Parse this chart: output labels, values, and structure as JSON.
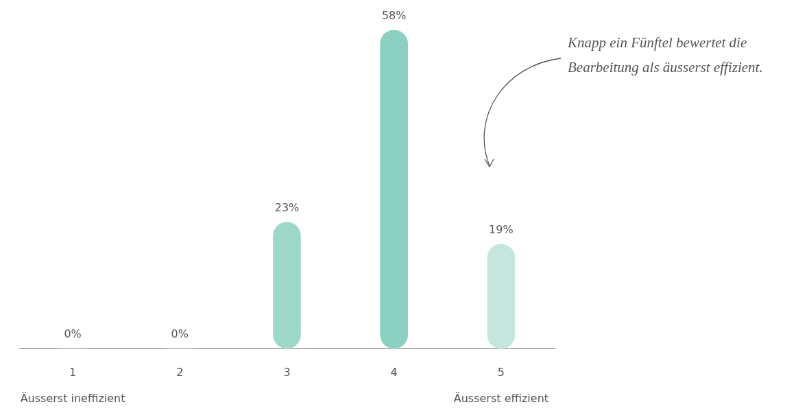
{
  "chart_data": {
    "type": "bar",
    "categories": [
      "1",
      "2",
      "3",
      "4",
      "5"
    ],
    "values": [
      0,
      0,
      23,
      58,
      19
    ],
    "colors": [
      "#9ed8c8",
      "#9ed8c8",
      "#9ed8c8",
      "#8cd0c1",
      "#c4e6dd"
    ],
    "value_labels": [
      "0%",
      "0%",
      "23%",
      "58%",
      "19%"
    ],
    "annotations": [
      "Äusserst ineffizient",
      "Äusserst effizient",
      "Knapp ein Fünftel bewertet die Bearbeitung als äusserst effizient."
    ],
    "grid": false,
    "legend": false
  }
}
